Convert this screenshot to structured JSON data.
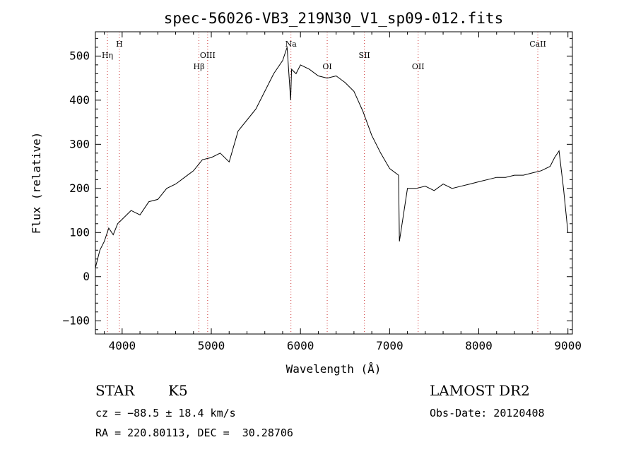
{
  "chart_data": {
    "type": "line",
    "title": "spec-56026-VB3_219N30_V1_sp09-012.fits",
    "xlabel": "Wavelength (Å)",
    "ylabel": "Flux (relative)",
    "xlim": [
      3700,
      9050
    ],
    "ylim": [
      -130,
      555
    ],
    "xticks": [
      4000,
      5000,
      6000,
      7000,
      8000,
      9000
    ],
    "yticks": [
      -100,
      0,
      100,
      200,
      300,
      400,
      500
    ],
    "grid": false,
    "legend": "none",
    "line_color": "#000000",
    "marker_color": "#cc3333",
    "spectral_lines": [
      {
        "label": "Hη",
        "x": 3835,
        "row": 2
      },
      {
        "label": "H",
        "x": 3969,
        "row": 1
      },
      {
        "label": "Hβ",
        "x": 4861,
        "row": 3
      },
      {
        "label": "OIII",
        "x": 4959,
        "row": 2
      },
      {
        "label": "Na",
        "x": 5893,
        "row": 1
      },
      {
        "label": "OI",
        "x": 6300,
        "row": 3
      },
      {
        "label": "SII",
        "x": 6717,
        "row": 2
      },
      {
        "label": "OII",
        "x": 7320,
        "row": 3
      },
      {
        "label": "CaII",
        "x": 8662,
        "row": 1
      }
    ],
    "x": [
      3700,
      3750,
      3800,
      3850,
      3900,
      3950,
      4000,
      4100,
      4200,
      4300,
      4400,
      4500,
      4600,
      4700,
      4800,
      4900,
      5000,
      5100,
      5200,
      5300,
      5400,
      5500,
      5600,
      5700,
      5800,
      5850,
      5890,
      5900,
      5950,
      6000,
      6100,
      6200,
      6300,
      6400,
      6500,
      6600,
      6700,
      6800,
      6900,
      7000,
      7100,
      7110,
      7200,
      7300,
      7400,
      7500,
      7600,
      7700,
      7800,
      7900,
      8000,
      8100,
      8200,
      8300,
      8400,
      8500,
      8600,
      8700,
      8800,
      8850,
      8900,
      8950,
      9000
    ],
    "y": [
      20,
      60,
      80,
      110,
      95,
      120,
      130,
      150,
      140,
      170,
      175,
      200,
      210,
      225,
      240,
      265,
      270,
      280,
      260,
      330,
      355,
      380,
      420,
      460,
      490,
      520,
      400,
      470,
      460,
      480,
      470,
      455,
      450,
      455,
      440,
      420,
      375,
      320,
      280,
      245,
      230,
      80,
      200,
      200,
      205,
      195,
      210,
      200,
      205,
      210,
      215,
      220,
      225,
      225,
      230,
      230,
      235,
      240,
      250,
      270,
      285,
      200,
      100
    ]
  },
  "info": {
    "class": "STAR",
    "subclass": "K5",
    "cz": "cz = −88.5 ± 18.4 km/s",
    "radec": "RA = 220.80113, DEC =  30.28706",
    "survey": "LAMOST DR2",
    "obs_date": "Obs-Date: 20120408"
  }
}
